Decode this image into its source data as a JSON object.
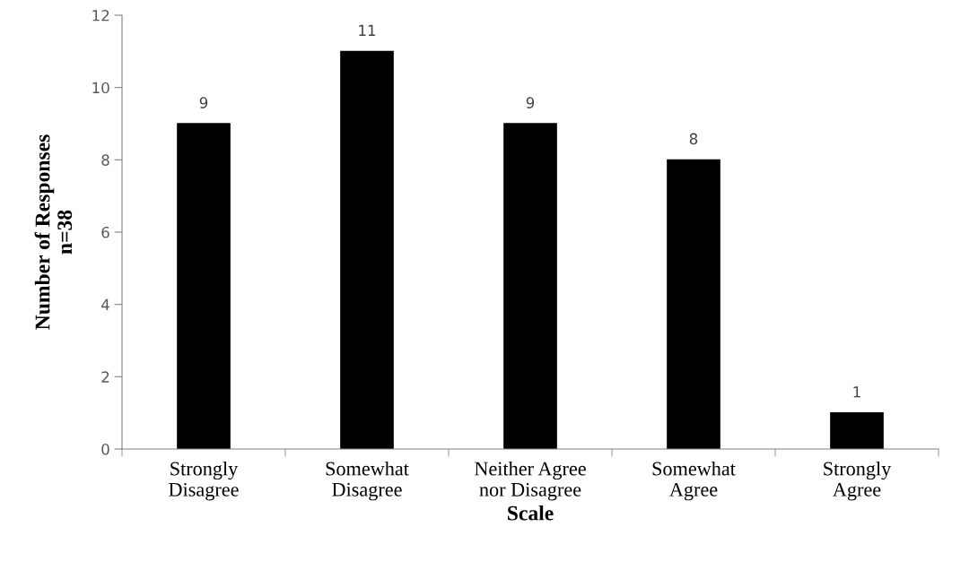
{
  "chart_data": {
    "type": "bar",
    "xlabel": "Scale",
    "ylabel": "Number of Responses\nn=38",
    "categories": [
      "Strongly\nDisagree",
      "Somewhat\nDisagree",
      "Neither Agree\nnor Disagree",
      "Somewhat\nAgree",
      "Strongly\nAgree"
    ],
    "values": [
      9,
      11,
      9,
      8,
      1
    ],
    "color": "#000000",
    "ylim": [
      0,
      12
    ],
    "yticks": [
      0,
      2,
      4,
      6,
      8,
      10,
      12
    ],
    "grid": false,
    "data_labels": true
  }
}
